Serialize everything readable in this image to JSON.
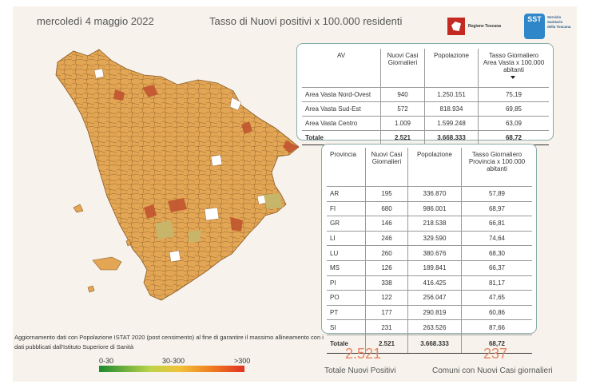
{
  "header": {
    "date": "mercoledì 4 maggio 2022",
    "title": "Tasso di Nuovi positivi x 100.000 residenti",
    "logo_regione": "Regione Toscana",
    "logo_sst_mark": "SST",
    "logo_sst_text": "Servizio Sanitario della Toscana"
  },
  "av_table": {
    "headers": [
      "AV",
      "Nuovi Casi Giornalieri",
      "Popolazione",
      "Tasso Giornaliero Area Vasta x 100.000 abitanti"
    ],
    "rows": [
      [
        "Area Vasta Nord-Ovest",
        "940",
        "1.250.151",
        "75,19"
      ],
      [
        "Area Vasta Sud-Est",
        "572",
        "818.934",
        "69,85"
      ],
      [
        "Area Vasta Centro",
        "1.009",
        "1.599.248",
        "63,09"
      ]
    ],
    "total": [
      "Totale",
      "2.521",
      "3.668.333",
      "68,72"
    ]
  },
  "prov_table": {
    "headers": [
      "Provincia",
      "Nuovi Casi Giornalieri",
      "Popolazione",
      "Tasso Giornaliero Provincia x 100.000 abitanti"
    ],
    "rows": [
      [
        "AR",
        "195",
        "336.870",
        "57,89"
      ],
      [
        "FI",
        "680",
        "986.001",
        "68,97"
      ],
      [
        "GR",
        "146",
        "218.538",
        "66,81"
      ],
      [
        "LI",
        "246",
        "329.590",
        "74,64"
      ],
      [
        "LU",
        "260",
        "380.676",
        "68,30"
      ],
      [
        "MS",
        "126",
        "189.841",
        "66,37"
      ],
      [
        "PI",
        "338",
        "416.425",
        "81,17"
      ],
      [
        "PO",
        "122",
        "256.047",
        "47,65"
      ],
      [
        "PT",
        "177",
        "290.819",
        "60,86"
      ],
      [
        "SI",
        "231",
        "263.526",
        "87,66"
      ]
    ],
    "total": [
      "Totale",
      "2.521",
      "3.668.333",
      "68,72"
    ]
  },
  "note": "Aggiornamento dati con Popolazione ISTAT 2020 (post censimento) al fine di garantire il massimo allineamento con i dati pubblicati dall'Istituto Superiore di Sanità",
  "legend": {
    "low": "0-30",
    "mid": "30-300",
    "high": ">300"
  },
  "kpis": {
    "total_value": "2.521",
    "total_label": "Totale Nuovi Positivi",
    "comuni_value": "237",
    "comuni_label": "Comuni con Nuovi Casi giornalieri"
  },
  "colors": {
    "accent": "#e48567",
    "map_fill": "#e2a450",
    "map_high": "#c0502e",
    "border": "#8aa"
  }
}
